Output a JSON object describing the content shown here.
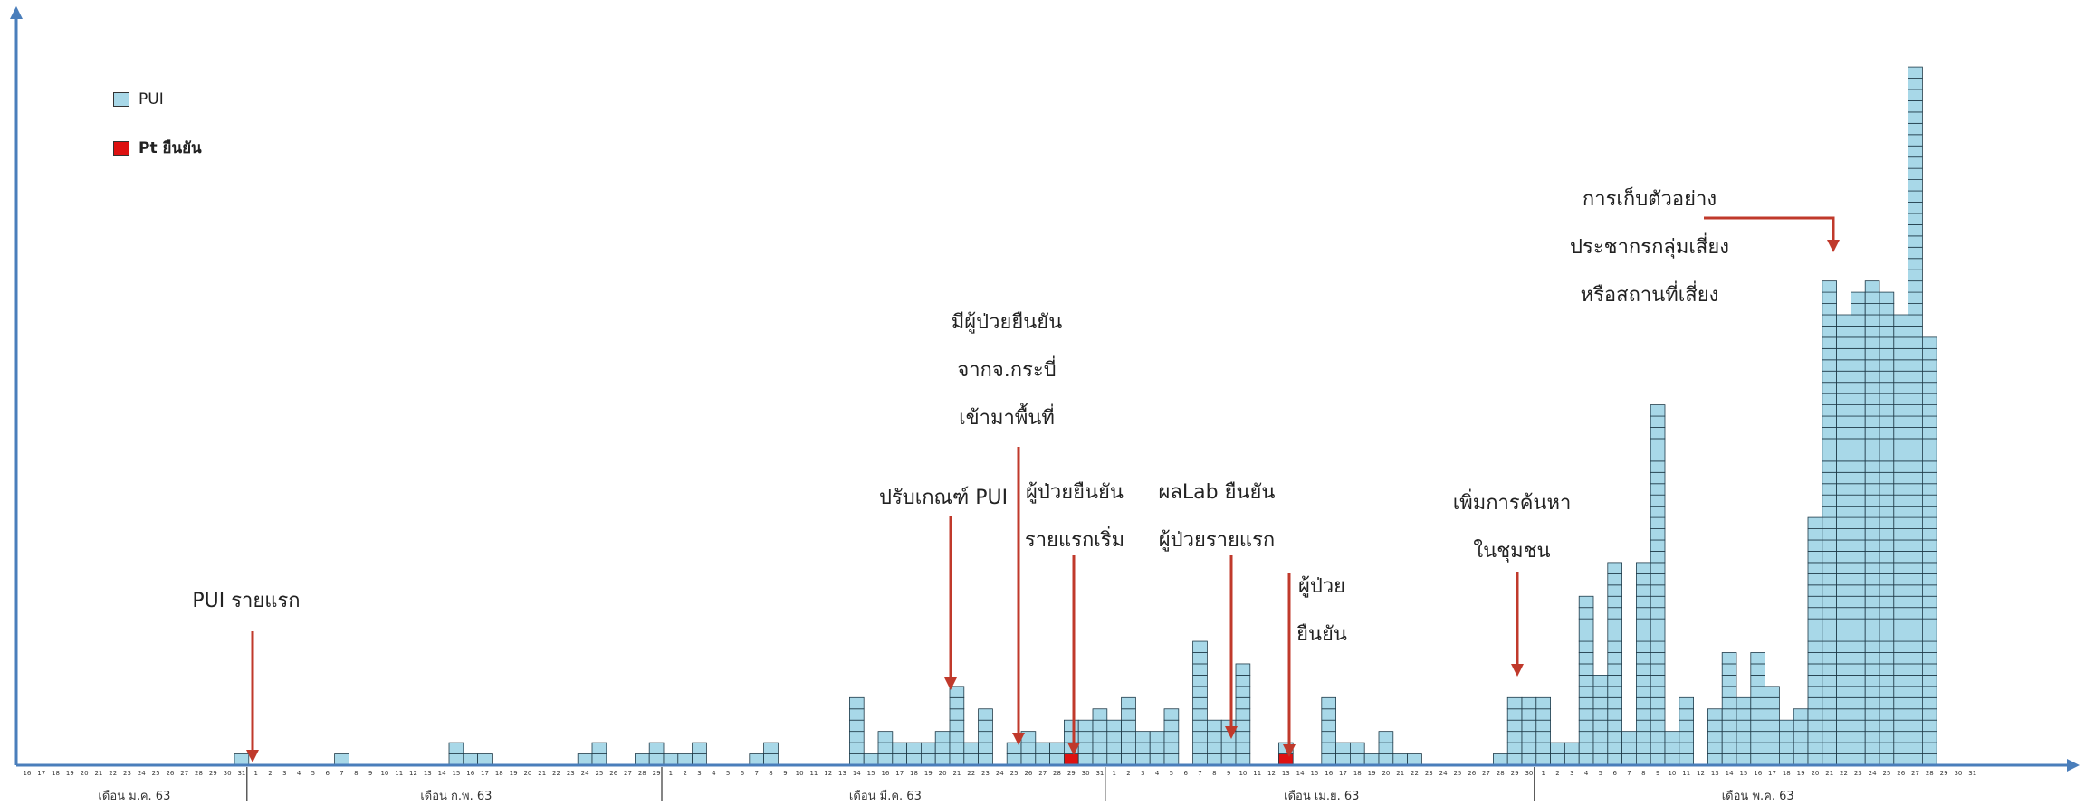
{
  "legend": {
    "pui": {
      "label": "PUI",
      "color": "#a8d8e8"
    },
    "confirmed": {
      "label": "Pt ยืนยัน",
      "color": "#dd1111"
    }
  },
  "months": [
    "เดือน ม.ค. 63",
    "เดือน ก.พ. 63",
    "เดือน มี.ค. 63",
    "เดือน เม.ย. 63",
    "เดือน พ.ค. 63"
  ],
  "annotations": [
    {
      "id": "first-pui",
      "lines": [
        "PUI รายแรก"
      ]
    },
    {
      "id": "adjust-criteria",
      "lines": [
        "ปรับเกณฑ์ PUI"
      ]
    },
    {
      "id": "krabi-patient",
      "lines": [
        "มีผู้ป่วยยืนยัน",
        "จากจ.กระบี่",
        "เข้ามาพื้นที่"
      ]
    },
    {
      "id": "first-confirmed",
      "lines": [
        "ผู้ป่วยยืนยัน",
        "รายแรกเริ่ม"
      ]
    },
    {
      "id": "lab-confirm",
      "lines": [
        "ผลLab ยืนยัน",
        "ผู้ป่วยรายแรก"
      ]
    },
    {
      "id": "patient-confirmed",
      "lines": [
        "ผู้ป่วย",
        "ยืนยัน"
      ]
    },
    {
      "id": "community-search",
      "lines": [
        "เพิ่มการค้นหา",
        "ในชุมชน"
      ]
    },
    {
      "id": "risk-sampling",
      "lines": [
        "การเก็บตัวอย่าง",
        "ประชากรกลุ่มเสี่ยง",
        "หรือสถานที่เสี่ยง"
      ]
    }
  ],
  "chart_data": {
    "type": "bar",
    "title": "",
    "xlabel": "",
    "ylabel": "",
    "x": {
      "month_labels": [
        "เดือน ม.ค. 63",
        "เดือน ก.พ. 63",
        "เดือน มี.ค. 63",
        "เดือน เม.ย. 63",
        "เดือน พ.ค. 63"
      ],
      "day_ticks": [
        "16",
        "17",
        "18",
        "19",
        "20",
        "21",
        "22",
        "23",
        "24",
        "25",
        "26",
        "27",
        "28",
        "29",
        "30",
        "31",
        "1",
        "2",
        "3",
        "4",
        "5",
        "6",
        "7",
        "8",
        "9",
        "10",
        "11",
        "12",
        "13",
        "14",
        "15",
        "16",
        "17",
        "18",
        "19",
        "20",
        "21",
        "22",
        "23",
        "24",
        "25",
        "26",
        "27",
        "28",
        "29",
        "1",
        "2",
        "3",
        "4",
        "5",
        "6",
        "7",
        "8",
        "9",
        "10",
        "11",
        "12",
        "13",
        "14",
        "15",
        "16",
        "17",
        "18",
        "19",
        "20",
        "21",
        "22",
        "23",
        "24",
        "25",
        "26",
        "27",
        "28",
        "29",
        "30",
        "31",
        "1",
        "2",
        "3",
        "4",
        "5",
        "6",
        "7",
        "8",
        "9",
        "10",
        "11",
        "12",
        "13",
        "14",
        "15",
        "16",
        "17",
        "18",
        "19",
        "20",
        "21",
        "22",
        "23",
        "24",
        "25",
        "26",
        "27",
        "28",
        "29",
        "30",
        "1",
        "2",
        "3",
        "4",
        "5",
        "6",
        "7",
        "8",
        "9",
        "10",
        "11",
        "12",
        "13",
        "14",
        "15",
        "16",
        "17",
        "18",
        "19",
        "20",
        "21",
        "22",
        "23",
        "24",
        "25",
        "26",
        "27",
        "28",
        "29",
        "30",
        "31"
      ]
    },
    "series": [
      {
        "name": "PUI",
        "values": [
          0,
          0,
          0,
          0,
          0,
          0,
          0,
          0,
          0,
          0,
          0,
          0,
          0,
          0,
          0,
          1,
          0,
          0,
          0,
          0,
          0,
          0,
          1,
          0,
          0,
          0,
          0,
          0,
          0,
          0,
          2,
          1,
          1,
          0,
          0,
          0,
          0,
          0,
          0,
          1,
          2,
          0,
          0,
          1,
          2,
          1,
          1,
          2,
          0,
          0,
          0,
          1,
          2,
          0,
          0,
          0,
          0,
          0,
          6,
          1,
          3,
          2,
          2,
          2,
          3,
          7,
          2,
          5,
          0,
          2,
          3,
          2,
          2,
          3,
          4,
          5,
          4,
          6,
          3,
          3,
          5,
          0,
          11,
          4,
          4,
          9,
          0,
          0,
          1,
          0,
          0,
          6,
          2,
          2,
          1,
          3,
          1,
          1,
          0,
          0,
          0,
          0,
          0,
          1,
          6,
          6,
          6,
          2,
          2,
          15,
          8,
          18,
          3,
          18,
          32,
          3,
          6,
          0,
          5,
          10,
          6,
          10,
          7,
          4,
          5,
          22,
          43,
          40,
          42,
          43,
          42,
          40,
          62,
          38,
          0,
          0,
          0,
          0
        ]
      },
      {
        "name": "Pt ยืนยัน",
        "values": [
          0,
          0,
          0,
          0,
          0,
          0,
          0,
          0,
          0,
          0,
          0,
          0,
          0,
          0,
          0,
          0,
          0,
          0,
          0,
          0,
          0,
          0,
          0,
          0,
          0,
          0,
          0,
          0,
          0,
          0,
          0,
          0,
          0,
          0,
          0,
          0,
          0,
          0,
          0,
          0,
          0,
          0,
          0,
          0,
          0,
          0,
          0,
          0,
          0,
          0,
          0,
          0,
          0,
          0,
          0,
          0,
          0,
          0,
          0,
          0,
          0,
          0,
          0,
          0,
          0,
          0,
          0,
          0,
          0,
          0,
          0,
          0,
          0,
          1,
          0,
          0,
          0,
          0,
          0,
          0,
          0,
          0,
          0,
          0,
          0,
          0,
          0,
          0,
          1,
          0,
          0,
          0,
          0,
          0,
          0,
          0,
          0,
          0,
          0,
          0,
          0,
          0,
          0,
          0,
          0,
          0,
          0,
          0,
          0,
          0,
          0,
          0,
          0,
          0,
          0,
          0,
          0,
          0,
          0,
          0,
          0,
          0,
          0,
          0,
          0,
          0,
          0,
          0,
          0,
          0,
          0,
          0,
          0,
          0,
          0,
          0,
          0,
          0
        ]
      }
    ],
    "ylim": [
      0,
      62
    ],
    "grid": false,
    "legend_position": "top-left"
  }
}
